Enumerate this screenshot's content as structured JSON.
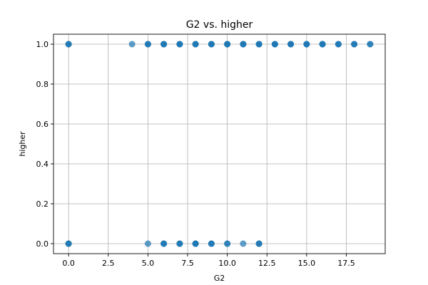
{
  "chart_data": {
    "type": "scatter",
    "title": "G2 vs. higher",
    "xlabel": "G2",
    "ylabel": "higher",
    "xlim": [
      -0.95,
      19.95
    ],
    "ylim": [
      -0.05,
      1.05
    ],
    "xticks": [
      0.0,
      2.5,
      5.0,
      7.5,
      10.0,
      12.5,
      15.0,
      17.5
    ],
    "xtick_labels": [
      "0.0",
      "2.5",
      "5.0",
      "7.5",
      "10.0",
      "12.5",
      "15.0",
      "17.5"
    ],
    "yticks": [
      0.0,
      0.2,
      0.4,
      0.6,
      0.8,
      1.0
    ],
    "ytick_labels": [
      "0.0",
      "0.2",
      "0.4",
      "0.6",
      "0.8",
      "1.0"
    ],
    "grid": true,
    "color": "#1f77b4",
    "alpha": 0.7,
    "points": [
      {
        "x": 0,
        "y": 1,
        "n": 3
      },
      {
        "x": 4,
        "y": 1,
        "n": 1
      },
      {
        "x": 5,
        "y": 1,
        "n": 3
      },
      {
        "x": 6,
        "y": 1,
        "n": 4
      },
      {
        "x": 7,
        "y": 1,
        "n": 4
      },
      {
        "x": 8,
        "y": 1,
        "n": 4
      },
      {
        "x": 9,
        "y": 1,
        "n": 4
      },
      {
        "x": 10,
        "y": 1,
        "n": 4
      },
      {
        "x": 11,
        "y": 1,
        "n": 4
      },
      {
        "x": 12,
        "y": 1,
        "n": 4
      },
      {
        "x": 13,
        "y": 1,
        "n": 4
      },
      {
        "x": 14,
        "y": 1,
        "n": 4
      },
      {
        "x": 15,
        "y": 1,
        "n": 4
      },
      {
        "x": 16,
        "y": 1,
        "n": 4
      },
      {
        "x": 17,
        "y": 1,
        "n": 3
      },
      {
        "x": 18,
        "y": 1,
        "n": 3
      },
      {
        "x": 19,
        "y": 1,
        "n": 2
      },
      {
        "x": 0,
        "y": 0,
        "n": 3
      },
      {
        "x": 5,
        "y": 0,
        "n": 1
      },
      {
        "x": 6,
        "y": 0,
        "n": 3
      },
      {
        "x": 7,
        "y": 0,
        "n": 3
      },
      {
        "x": 8,
        "y": 0,
        "n": 4
      },
      {
        "x": 9,
        "y": 0,
        "n": 3
      },
      {
        "x": 10,
        "y": 0,
        "n": 2
      },
      {
        "x": 11,
        "y": 0,
        "n": 1
      },
      {
        "x": 12,
        "y": 0,
        "n": 3
      }
    ]
  }
}
